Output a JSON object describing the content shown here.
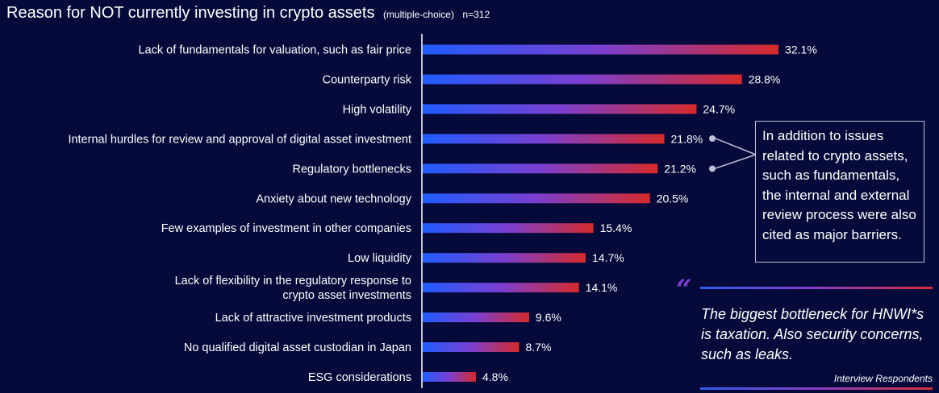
{
  "title": {
    "main": "Reason for NOT currently investing in crypto assets",
    "sub": "(multiple-choice)",
    "n": "n=312"
  },
  "colors": {
    "background": "#050a3a",
    "bar_start": "#1f5cff",
    "bar_mid": "#7b3fd0",
    "bar_end": "#d62a2a"
  },
  "chart_data": {
    "type": "bar",
    "orientation": "horizontal",
    "categories": [
      [
        "Lack of fundamentals for valuation, such as fair price"
      ],
      [
        "Counterparty risk"
      ],
      [
        "High volatility"
      ],
      [
        "Internal hurdles for review and approval of digital asset investment"
      ],
      [
        "Regulatory bottlenecks"
      ],
      [
        "Anxiety about new technology"
      ],
      [
        "Few examples of investment in other companies"
      ],
      [
        "Low liquidity"
      ],
      [
        "Lack of flexibility in the regulatory response to",
        "crypto asset investments"
      ],
      [
        "Lack of attractive investment products"
      ],
      [
        "No qualified digital asset custodian  in Japan"
      ],
      [
        "ESG considerations"
      ]
    ],
    "values": [
      32.1,
      28.8,
      24.7,
      21.8,
      21.2,
      20.5,
      15.4,
      14.7,
      14.1,
      9.6,
      8.7,
      4.8
    ],
    "value_labels": [
      "32.1%",
      "28.8%",
      "24.7%",
      "21.8%",
      "21.2%",
      "20.5%",
      "15.4%",
      "14.7%",
      "14.1%",
      "9.6%",
      "8.7%",
      "4.8%"
    ],
    "unit": "%",
    "xlim": [
      0,
      35
    ],
    "grid": false,
    "legend": "none",
    "highlighted_indices": [
      3,
      4
    ]
  },
  "callout": {
    "text": "In addition to issues related to crypto assets, such as fundamentals, the internal and external review process were also cited as major barriers."
  },
  "quote": {
    "mark": "“",
    "text": "The biggest bottleneck for HNWI*s is taxation. Also security concerns, such as leaks.",
    "attribution": "Interview Respondents"
  }
}
